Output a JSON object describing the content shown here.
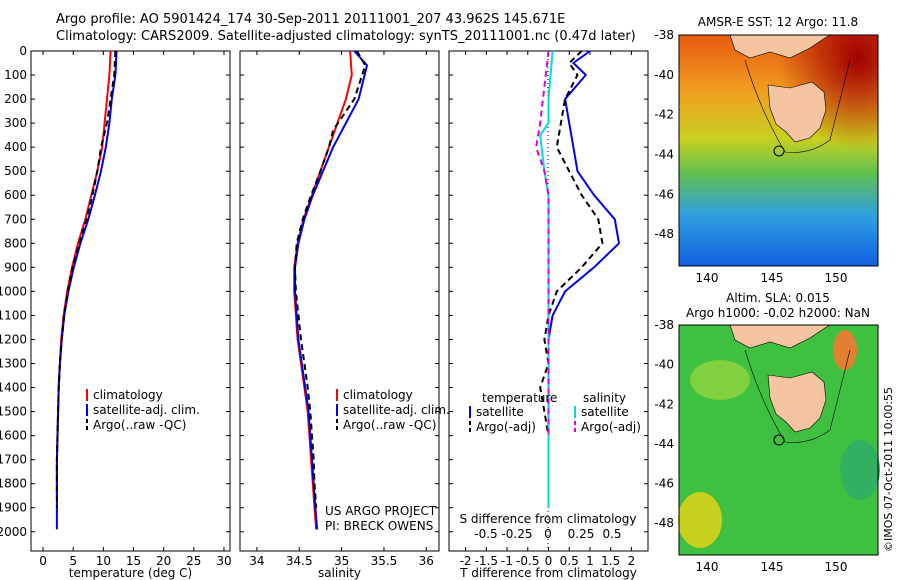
{
  "header": {
    "line1": "Argo profile: AO 5901424_174 30-Sep-2011 20111001_207 43.962S 145.671E",
    "line2": "Climatology: CARS2009. Satellite-adjusted climatology: synTS_20111001.nc (0.47d later)"
  },
  "credit": "©IMOS 07-Oct-2011 10:00:55",
  "colors": {
    "climatology": "#ff0000",
    "satellite": "#0000ee",
    "argo": "#000000",
    "sat_sal": "#00dddd",
    "argo_sal": "#dd00dd"
  },
  "chart_data": [
    {
      "type": "line",
      "id": "temperature",
      "xlabel": "temperature (deg C)",
      "ylabel": "",
      "xlim": [
        -2,
        31
      ],
      "ylim": [
        2080,
        0
      ],
      "xticks": [
        "0",
        "5",
        "10",
        "15",
        "20",
        "25",
        "30"
      ],
      "yticks": [
        "0",
        "100",
        "200",
        "300",
        "400",
        "500",
        "600",
        "700",
        "800",
        "900",
        "1000",
        "1100",
        "1200",
        "1300",
        "1400",
        "1500",
        "1600",
        "1700",
        "1800",
        "1900",
        "2000"
      ],
      "legend": [
        "climatology",
        "satellite-adj. clim.",
        "Argo(..raw -QC)"
      ],
      "series": [
        {
          "name": "climatology",
          "color": "#ff0000",
          "x": [
            11.2,
            11.0,
            10.6,
            10.2,
            9.8,
            9.0,
            8.0,
            7.0,
            5.8,
            4.8,
            4.0,
            3.4,
            3.0,
            2.8,
            2.6,
            2.5,
            2.4,
            2.3,
            2.3
          ],
          "y": [
            0,
            100,
            200,
            300,
            400,
            500,
            600,
            700,
            800,
            900,
            1000,
            1100,
            1200,
            1300,
            1400,
            1500,
            1600,
            1700,
            1840
          ]
        },
        {
          "name": "satellite-adj. clim.",
          "color": "#0000ee",
          "x": [
            12.2,
            12.0,
            11.4,
            11.0,
            10.4,
            9.6,
            8.6,
            7.5,
            6.2,
            5.1,
            4.2,
            3.5,
            3.1,
            2.8,
            2.6,
            2.5,
            2.4,
            2.3,
            2.3,
            2.3
          ],
          "y": [
            0,
            100,
            200,
            300,
            400,
            500,
            600,
            700,
            800,
            900,
            1000,
            1100,
            1200,
            1300,
            1400,
            1500,
            1600,
            1700,
            1800,
            1990
          ]
        },
        {
          "name": "Argo(..raw -QC)",
          "color": "#000000",
          "dashed": true,
          "x": [
            12.0,
            11.8,
            11.2,
            10.6,
            9.6,
            9.0,
            8.2,
            7.2,
            6.0,
            4.9,
            4.1,
            3.5,
            3.1,
            2.8,
            2.6,
            2.5,
            2.4,
            2.3,
            2.3
          ],
          "y": [
            0,
            100,
            200,
            300,
            400,
            500,
            600,
            700,
            800,
            900,
            1000,
            1100,
            1200,
            1300,
            1400,
            1500,
            1600,
            1700,
            1900
          ]
        }
      ]
    },
    {
      "type": "line",
      "id": "salinity",
      "xlabel": "salinity",
      "ylabel": "",
      "xlim": [
        33.8,
        36.15
      ],
      "ylim": [
        2080,
        0
      ],
      "xticks": [
        "34",
        "34.5",
        "35",
        "35.5",
        "36"
      ],
      "legend": [
        "climatology",
        "satellite-adj. clim.",
        "Argo(..raw -QC)"
      ],
      "annotation": [
        "US ARGO PROJECT",
        "PI: BRECK OWENS"
      ],
      "series": [
        {
          "name": "climatology",
          "color": "#ff0000",
          "x": [
            35.1,
            35.12,
            35.05,
            34.95,
            34.85,
            34.75,
            34.65,
            34.55,
            34.48,
            34.44,
            34.44,
            34.48,
            34.52,
            34.56,
            34.6,
            34.62,
            34.64,
            34.66,
            34.68,
            34.7
          ],
          "y": [
            0,
            100,
            200,
            300,
            400,
            500,
            600,
            700,
            800,
            900,
            1000,
            1200,
            1300,
            1400,
            1500,
            1600,
            1700,
            1800,
            1900,
            1990
          ]
        },
        {
          "name": "satellite-adj. clim.",
          "color": "#0000ee",
          "x": [
            35.15,
            35.3,
            35.2,
            35.05,
            34.9,
            34.78,
            34.66,
            34.56,
            34.49,
            34.45,
            34.45,
            34.49,
            34.53,
            34.57,
            34.61,
            34.63,
            34.65,
            34.67,
            34.69,
            34.71
          ],
          "y": [
            0,
            60,
            200,
            300,
            400,
            500,
            600,
            700,
            800,
            900,
            1000,
            1200,
            1300,
            1400,
            1500,
            1600,
            1700,
            1800,
            1900,
            1990
          ]
        },
        {
          "name": "Argo(..raw -QC)",
          "color": "#000000",
          "dashed": true,
          "x": [
            35.18,
            35.28,
            35.15,
            34.9,
            34.85,
            34.75,
            34.64,
            34.54,
            34.47,
            34.45,
            34.46,
            34.52,
            34.56,
            34.6,
            34.63,
            34.65,
            34.67,
            34.68,
            34.7
          ],
          "y": [
            0,
            60,
            200,
            330,
            400,
            500,
            600,
            700,
            800,
            900,
            1000,
            1200,
            1300,
            1400,
            1500,
            1600,
            1700,
            1800,
            1900
          ]
        }
      ]
    },
    {
      "type": "line",
      "id": "difference",
      "xlabel": "T difference from climatology",
      "xlabel2": "S difference from climatology",
      "xlim": [
        -2.4,
        2.4
      ],
      "ylim": [
        2080,
        0
      ],
      "xticks": [
        "-2",
        "-1.5",
        "-1",
        "-0.5",
        "0",
        "0.5",
        "1",
        "1.5",
        "2"
      ],
      "xticks2": [
        "-0.5",
        "-0.25",
        "0",
        "0.25",
        "0.5"
      ],
      "legend_groups": [
        {
          "title": "temperature",
          "items": [
            "satellite",
            "Argo(-adj)"
          ]
        },
        {
          "title": "salinity",
          "items": [
            "satellite",
            "Argo(-adj)"
          ]
        }
      ],
      "series": [
        {
          "name": "temperature satellite",
          "color": "#0000ee",
          "x": [
            1.0,
            0.6,
            0.9,
            0.4,
            0.5,
            0.6,
            0.7,
            1.1,
            1.6,
            1.7,
            1.1,
            0.4,
            0.1,
            0.0,
            0.0,
            0.0,
            0.0,
            0.0,
            0.0
          ],
          "y": [
            0,
            50,
            100,
            200,
            300,
            400,
            500,
            600,
            700,
            800,
            900,
            1000,
            1100,
            1200,
            1300,
            1400,
            1500,
            1600,
            1800
          ]
        },
        {
          "name": "temperature Argo(-adj)",
          "color": "#000000",
          "dashed": true,
          "x": [
            0.8,
            0.5,
            0.7,
            0.4,
            0.3,
            0.2,
            0.5,
            0.8,
            1.2,
            1.3,
            0.8,
            0.2,
            0.0,
            -0.1,
            0.0,
            -0.2,
            -0.1,
            0.0,
            0.0
          ],
          "y": [
            0,
            50,
            100,
            200,
            300,
            400,
            500,
            600,
            700,
            800,
            900,
            1000,
            1100,
            1200,
            1300,
            1400,
            1500,
            1600,
            1800
          ]
        },
        {
          "name": "salinity satellite",
          "color": "#00dddd",
          "x": [
            0.1,
            0.0,
            0.0,
            -0.2,
            -0.1,
            0.0,
            0.0,
            0.0,
            0.0,
            0.0,
            0.0,
            0.0,
            0.0,
            0.0,
            0.0,
            0.0
          ],
          "y": [
            0,
            200,
            300,
            350,
            500,
            600,
            800,
            1000,
            1100,
            1200,
            1400,
            1500,
            1600,
            1700,
            1800,
            1900
          ]
        },
        {
          "name": "salinity Argo(-adj)",
          "color": "#dd00dd",
          "dashed": true,
          "x": [
            0.0,
            -0.2,
            -0.3,
            -0.1,
            0.0,
            0.0,
            0.0,
            0.0,
            0.0
          ],
          "y": [
            0,
            300,
            400,
            500,
            600,
            800,
            1000,
            1400,
            1600
          ]
        }
      ]
    }
  ],
  "maps": [
    {
      "id": "sst",
      "title": "AMSR-E SST: 12 Argo: 11.8",
      "xticks": [
        "140",
        "145",
        "150"
      ],
      "yticks": [
        "-38",
        "-40",
        "-42",
        "-44",
        "-46",
        "-48"
      ]
    },
    {
      "id": "sla",
      "title1": "Altim. SLA: 0.015",
      "title2": "Argo h1000: -0.02 h2000: NaN",
      "xticks": [
        "140",
        "145",
        "150"
      ],
      "yticks": [
        "-38",
        "-40",
        "-42",
        "-44",
        "-46",
        "-48"
      ]
    }
  ]
}
